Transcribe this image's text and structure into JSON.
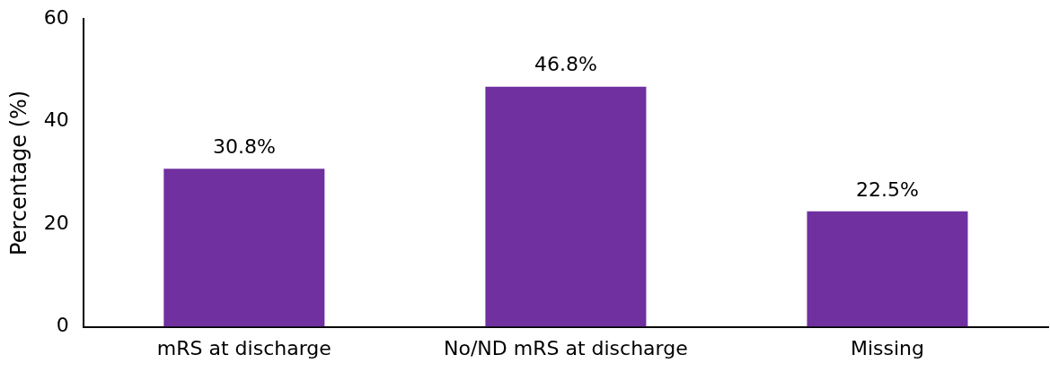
{
  "chart_data": {
    "type": "bar",
    "ylabel": "Percentage (%)",
    "categories": [
      "mRS at discharge",
      "No/ND mRS at discharge",
      "Missing"
    ],
    "values": [
      30.8,
      46.8,
      22.5
    ],
    "value_labels": [
      "30.8%",
      "46.8%",
      "22.5%"
    ],
    "color": "#7030a0",
    "ylim": [
      0,
      60
    ],
    "yticks": [
      0,
      20,
      40,
      60
    ],
    "grid": false,
    "legend": false
  }
}
